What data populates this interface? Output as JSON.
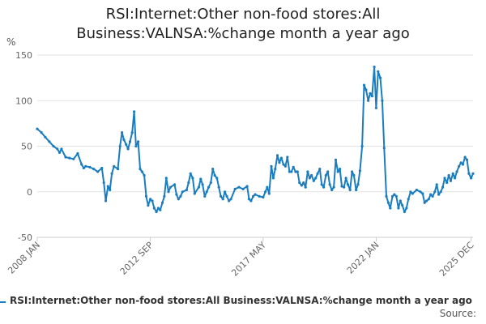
{
  "chart_data": {
    "type": "line",
    "title_line1": "RSI:Internet:Other non-food stores:All",
    "title_line2": "Business:VALNSA:%change month a year ago",
    "ylabel": "%",
    "ylim": [
      -50,
      150
    ],
    "yticks": [
      150,
      100,
      50,
      0,
      -50
    ],
    "xlim": [
      2008.0,
      2026.0
    ],
    "xticks": [
      {
        "label": "2008 JAN",
        "x": 2008.0
      },
      {
        "label": "2012 SEP",
        "x": 2012.67
      },
      {
        "label": "2017 MAY",
        "x": 2017.33
      },
      {
        "label": "2022 JAN",
        "x": 2022.0
      },
      {
        "label": "2025 DEC",
        "x": 2025.92
      }
    ],
    "grid": true,
    "series": [
      {
        "name": "RSI:Internet:Other non-food stores:All Business:VALNSA:%change month a year ago",
        "color": "#1a7dc0",
        "points": [
          [
            2008.0,
            69
          ],
          [
            2008.17,
            65
          ],
          [
            2008.33,
            60
          ],
          [
            2008.5,
            55
          ],
          [
            2008.67,
            50
          ],
          [
            2008.83,
            47
          ],
          [
            2008.92,
            43
          ],
          [
            2009.0,
            47
          ],
          [
            2009.17,
            38
          ],
          [
            2009.33,
            37
          ],
          [
            2009.5,
            36
          ],
          [
            2009.67,
            42
          ],
          [
            2009.83,
            30
          ],
          [
            2009.92,
            26
          ],
          [
            2010.0,
            28
          ],
          [
            2010.17,
            27
          ],
          [
            2010.33,
            25
          ],
          [
            2010.5,
            22
          ],
          [
            2010.67,
            26
          ],
          [
            2010.75,
            10
          ],
          [
            2010.83,
            -10
          ],
          [
            2010.92,
            6
          ],
          [
            2011.0,
            2
          ],
          [
            2011.08,
            20
          ],
          [
            2011.17,
            28
          ],
          [
            2011.33,
            25
          ],
          [
            2011.42,
            50
          ],
          [
            2011.5,
            65
          ],
          [
            2011.58,
            57
          ],
          [
            2011.67,
            52
          ],
          [
            2011.75,
            47
          ],
          [
            2011.83,
            55
          ],
          [
            2011.92,
            65
          ],
          [
            2012.0,
            88
          ],
          [
            2012.08,
            50
          ],
          [
            2012.17,
            55
          ],
          [
            2012.25,
            25
          ],
          [
            2012.33,
            22
          ],
          [
            2012.42,
            18
          ],
          [
            2012.5,
            -5
          ],
          [
            2012.58,
            -15
          ],
          [
            2012.67,
            -8
          ],
          [
            2012.75,
            -10
          ],
          [
            2012.83,
            -18
          ],
          [
            2012.92,
            -22
          ],
          [
            2013.0,
            -18
          ],
          [
            2013.08,
            -20
          ],
          [
            2013.17,
            -12
          ],
          [
            2013.25,
            -5
          ],
          [
            2013.33,
            15
          ],
          [
            2013.42,
            0
          ],
          [
            2013.5,
            5
          ],
          [
            2013.67,
            8
          ],
          [
            2013.75,
            -3
          ],
          [
            2013.83,
            -8
          ],
          [
            2013.92,
            -5
          ],
          [
            2014.0,
            0
          ],
          [
            2014.17,
            2
          ],
          [
            2014.25,
            10
          ],
          [
            2014.33,
            20
          ],
          [
            2014.42,
            15
          ],
          [
            2014.5,
            -2
          ],
          [
            2014.67,
            5
          ],
          [
            2014.75,
            14
          ],
          [
            2014.83,
            8
          ],
          [
            2014.92,
            -5
          ],
          [
            2015.0,
            0
          ],
          [
            2015.08,
            5
          ],
          [
            2015.17,
            10
          ],
          [
            2015.25,
            25
          ],
          [
            2015.33,
            18
          ],
          [
            2015.42,
            15
          ],
          [
            2015.5,
            5
          ],
          [
            2015.58,
            -5
          ],
          [
            2015.67,
            -8
          ],
          [
            2015.75,
            0
          ],
          [
            2015.83,
            -5
          ],
          [
            2015.92,
            -10
          ],
          [
            2016.0,
            -8
          ],
          [
            2016.17,
            3
          ],
          [
            2016.33,
            5
          ],
          [
            2016.5,
            3
          ],
          [
            2016.67,
            6
          ],
          [
            2016.75,
            -8
          ],
          [
            2016.83,
            -10
          ],
          [
            2016.92,
            -5
          ],
          [
            2017.0,
            -3
          ],
          [
            2017.17,
            -5
          ],
          [
            2017.33,
            -6
          ],
          [
            2017.42,
            0
          ],
          [
            2017.5,
            5
          ],
          [
            2017.58,
            -2
          ],
          [
            2017.67,
            28
          ],
          [
            2017.75,
            15
          ],
          [
            2017.83,
            25
          ],
          [
            2017.92,
            40
          ],
          [
            2018.0,
            32
          ],
          [
            2018.08,
            37
          ],
          [
            2018.17,
            30
          ],
          [
            2018.25,
            28
          ],
          [
            2018.33,
            38
          ],
          [
            2018.42,
            22
          ],
          [
            2018.5,
            22
          ],
          [
            2018.58,
            27
          ],
          [
            2018.67,
            22
          ],
          [
            2018.75,
            22
          ],
          [
            2018.83,
            10
          ],
          [
            2018.92,
            7
          ],
          [
            2019.0,
            10
          ],
          [
            2019.08,
            5
          ],
          [
            2019.17,
            22
          ],
          [
            2019.25,
            15
          ],
          [
            2019.33,
            18
          ],
          [
            2019.42,
            12
          ],
          [
            2019.5,
            15
          ],
          [
            2019.58,
            20
          ],
          [
            2019.67,
            25
          ],
          [
            2019.75,
            8
          ],
          [
            2019.83,
            5
          ],
          [
            2019.92,
            18
          ],
          [
            2020.0,
            22
          ],
          [
            2020.08,
            8
          ],
          [
            2020.17,
            2
          ],
          [
            2020.25,
            5
          ],
          [
            2020.33,
            35
          ],
          [
            2020.42,
            22
          ],
          [
            2020.5,
            25
          ],
          [
            2020.58,
            6
          ],
          [
            2020.67,
            5
          ],
          [
            2020.75,
            15
          ],
          [
            2020.83,
            8
          ],
          [
            2020.92,
            2
          ],
          [
            2021.0,
            22
          ],
          [
            2021.08,
            18
          ],
          [
            2021.17,
            2
          ],
          [
            2021.25,
            8
          ],
          [
            2021.33,
            23
          ],
          [
            2021.42,
            50
          ],
          [
            2021.5,
            117
          ],
          [
            2021.58,
            112
          ],
          [
            2021.67,
            100
          ],
          [
            2021.75,
            108
          ],
          [
            2021.83,
            105
          ],
          [
            2021.92,
            137
          ],
          [
            2022.0,
            92
          ],
          [
            2022.08,
            132
          ],
          [
            2022.17,
            125
          ],
          [
            2022.25,
            100
          ],
          [
            2022.33,
            48
          ],
          [
            2022.42,
            -5
          ],
          [
            2022.5,
            -12
          ],
          [
            2022.58,
            -18
          ],
          [
            2022.67,
            -5
          ],
          [
            2022.75,
            -3
          ],
          [
            2022.83,
            -5
          ],
          [
            2022.92,
            -18
          ],
          [
            2023.0,
            -10
          ],
          [
            2023.08,
            -15
          ],
          [
            2023.17,
            -22
          ],
          [
            2023.25,
            -18
          ],
          [
            2023.33,
            -8
          ],
          [
            2023.42,
            0
          ],
          [
            2023.5,
            -2
          ],
          [
            2023.67,
            2
          ],
          [
            2023.83,
            0
          ],
          [
            2023.92,
            -2
          ],
          [
            2024.0,
            -12
          ],
          [
            2024.08,
            -10
          ],
          [
            2024.17,
            -8
          ],
          [
            2024.25,
            -3
          ],
          [
            2024.33,
            -5
          ],
          [
            2024.42,
            0
          ],
          [
            2024.5,
            8
          ],
          [
            2024.58,
            -3
          ],
          [
            2024.67,
            0
          ],
          [
            2024.75,
            5
          ],
          [
            2024.83,
            15
          ],
          [
            2024.92,
            10
          ],
          [
            2025.0,
            18
          ],
          [
            2025.08,
            12
          ],
          [
            2025.17,
            20
          ],
          [
            2025.25,
            15
          ],
          [
            2025.33,
            22
          ],
          [
            2025.42,
            28
          ],
          [
            2025.5,
            32
          ],
          [
            2025.58,
            30
          ],
          [
            2025.67,
            38
          ],
          [
            2025.75,
            35
          ],
          [
            2025.83,
            20
          ],
          [
            2025.92,
            15
          ],
          [
            2026.0,
            20
          ]
        ]
      }
    ]
  },
  "legend": {
    "label": "RSI:Internet:Other non-food stores:All Business:VALNSA:%change month a year ago"
  },
  "source_label": "Source:"
}
